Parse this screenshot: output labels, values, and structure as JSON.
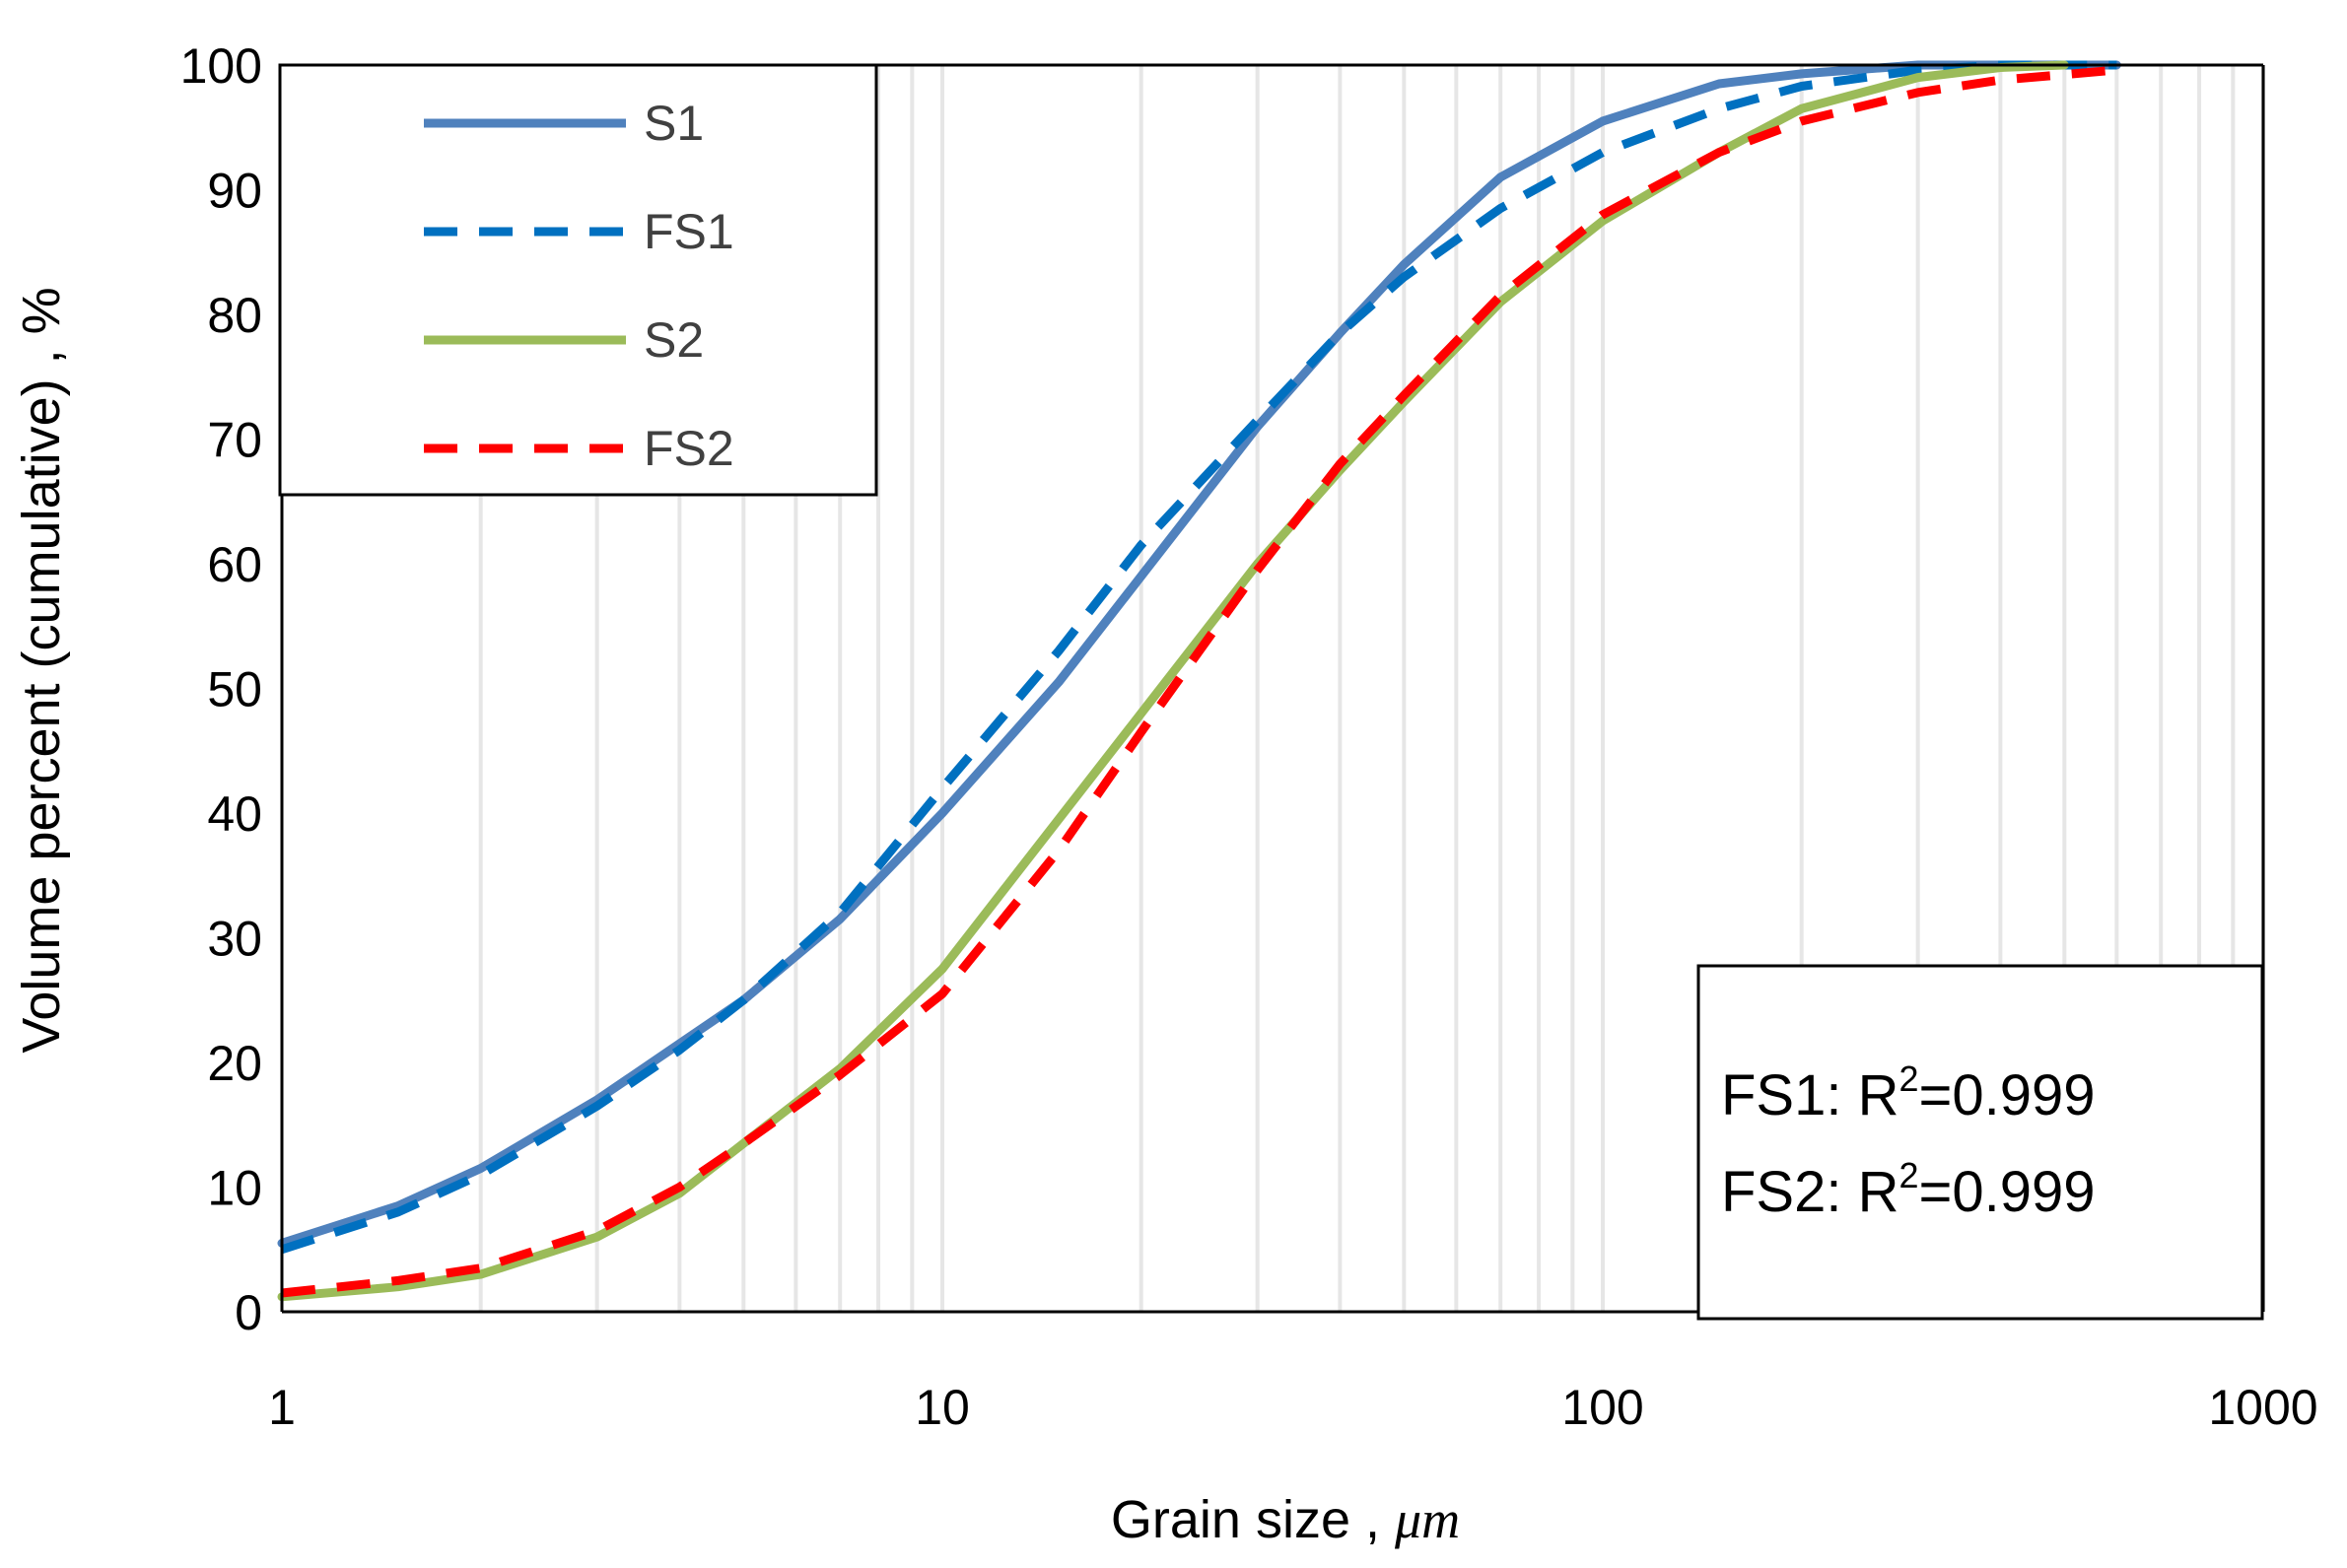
{
  "chart_data": {
    "type": "line",
    "title": "",
    "xlabel": "Grain size",
    "xlabel_unit": "μm",
    "xlabel_sep": " , ",
    "ylabel": "Volume  percent (cumulative) , %",
    "xscale": "log",
    "xlim": [
      1,
      1000
    ],
    "ylim": [
      0,
      100
    ],
    "x_ticks": [
      1,
      10,
      100,
      1000
    ],
    "x_tick_labels": [
      "1",
      "10",
      "100",
      "1000"
    ],
    "y_ticks": [
      0,
      10,
      20,
      30,
      40,
      50,
      60,
      70,
      80,
      90,
      100
    ],
    "y_tick_labels": [
      "0",
      "10",
      "20",
      "30",
      "40",
      "50",
      "60",
      "70",
      "80",
      "90",
      "100"
    ],
    "grid": "vertical minor (log)",
    "legend_position": "top-left",
    "series": [
      {
        "name": "S1",
        "color": "#4F81BD",
        "style": "solid",
        "x": [
          1,
          1.5,
          2,
          3,
          4,
          5,
          7,
          10,
          15,
          20,
          30,
          40,
          50,
          70,
          100,
          150,
          200,
          300,
          400,
          600
        ],
        "y": [
          5.5,
          8.5,
          11.5,
          17,
          21.5,
          25,
          31.5,
          40,
          50.5,
          59,
          71,
          78.5,
          84,
          91,
          95.5,
          98.5,
          99.3,
          100,
          100,
          100
        ]
      },
      {
        "name": "FS1",
        "color": "#0070C0",
        "style": "dashed",
        "x": [
          1,
          1.5,
          2,
          3,
          4,
          5,
          7,
          10,
          15,
          20,
          30,
          40,
          50,
          70,
          100,
          150,
          200,
          300,
          400,
          600
        ],
        "y": [
          5,
          8,
          11,
          16.5,
          21,
          25,
          32,
          42,
          53,
          61.5,
          71.5,
          78.5,
          83,
          88.5,
          93,
          96.5,
          98.3,
          99.6,
          100,
          100
        ]
      },
      {
        "name": "S2",
        "color": "#9BBB59",
        "style": "solid",
        "x": [
          1,
          1.5,
          2,
          3,
          4,
          5,
          7,
          10,
          15,
          20,
          30,
          40,
          50,
          70,
          100,
          150,
          200,
          300,
          400,
          500
        ],
        "y": [
          1.2,
          2,
          3,
          6,
          9.5,
          13.5,
          19.5,
          27.5,
          39.5,
          48,
          60,
          67.5,
          73,
          81,
          87.5,
          93,
          96.5,
          99,
          99.8,
          100
        ]
      },
      {
        "name": "FS2",
        "color": "#FF0000",
        "style": "dashed",
        "x": [
          1,
          1.5,
          2,
          3,
          4,
          5,
          7,
          10,
          15,
          20,
          30,
          40,
          50,
          70,
          100,
          150,
          200,
          300,
          400,
          600
        ],
        "y": [
          1.5,
          2.5,
          3.5,
          6.5,
          10,
          13.5,
          19,
          25.5,
          37,
          46.5,
          59.5,
          68,
          73.5,
          81.5,
          88,
          93,
          95.5,
          97.8,
          98.8,
          99.6
        ]
      }
    ],
    "annotations": [
      {
        "label": "FS1: R",
        "sup": "2",
        "value": "=0.999"
      },
      {
        "label": "FS2: R",
        "sup": "2",
        "value": "=0.999"
      }
    ]
  }
}
